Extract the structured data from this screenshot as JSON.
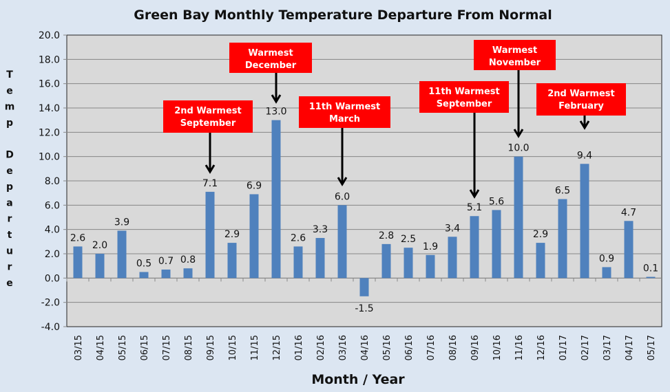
{
  "chart_data": {
    "type": "bar",
    "title": "Green Bay Monthly Temperature Departure From Normal",
    "xlabel": "Month / Year",
    "ylabel": "Temp Departure",
    "ylim": [
      -4.0,
      20.0
    ],
    "ytick_step": 2.0,
    "grid": true,
    "categories": [
      "03/15",
      "04/15",
      "05/15",
      "06/15",
      "07/15",
      "08/15",
      "09/15",
      "10/15",
      "11/15",
      "12/15",
      "01/16",
      "02/16",
      "03/16",
      "04/16",
      "05/16",
      "06/16",
      "07/16",
      "08/16",
      "09/16",
      "10/16",
      "11/16",
      "12/16",
      "01/17",
      "02/17",
      "03/17",
      "04/17",
      "05/17"
    ],
    "values": [
      2.6,
      2.0,
      3.9,
      0.5,
      0.7,
      0.8,
      7.1,
      2.9,
      6.9,
      13.0,
      2.6,
      3.3,
      6.0,
      -1.5,
      2.8,
      2.5,
      1.9,
      3.4,
      5.1,
      5.6,
      10.0,
      2.9,
      6.5,
      9.4,
      0.9,
      4.7,
      0.1
    ],
    "annotations": [
      {
        "category": "09/15",
        "lines": [
          "2nd Warmest",
          "September"
        ]
      },
      {
        "category": "12/15",
        "lines": [
          "Warmest",
          "December"
        ]
      },
      {
        "category": "03/16",
        "lines": [
          "11th  Warmest",
          "March"
        ]
      },
      {
        "category": "09/16",
        "lines": [
          "11th  Warmest",
          "September"
        ]
      },
      {
        "category": "11/16",
        "lines": [
          "Warmest",
          "November"
        ]
      },
      {
        "category": "02/17",
        "lines": [
          "2nd Warmest",
          "February"
        ]
      }
    ],
    "colors": {
      "bar": "#4f81bd",
      "plot_bg": "#d9d9d9",
      "page_bg": "#dce6f2",
      "annotation": "#ff0000",
      "grid": "#868686"
    }
  }
}
